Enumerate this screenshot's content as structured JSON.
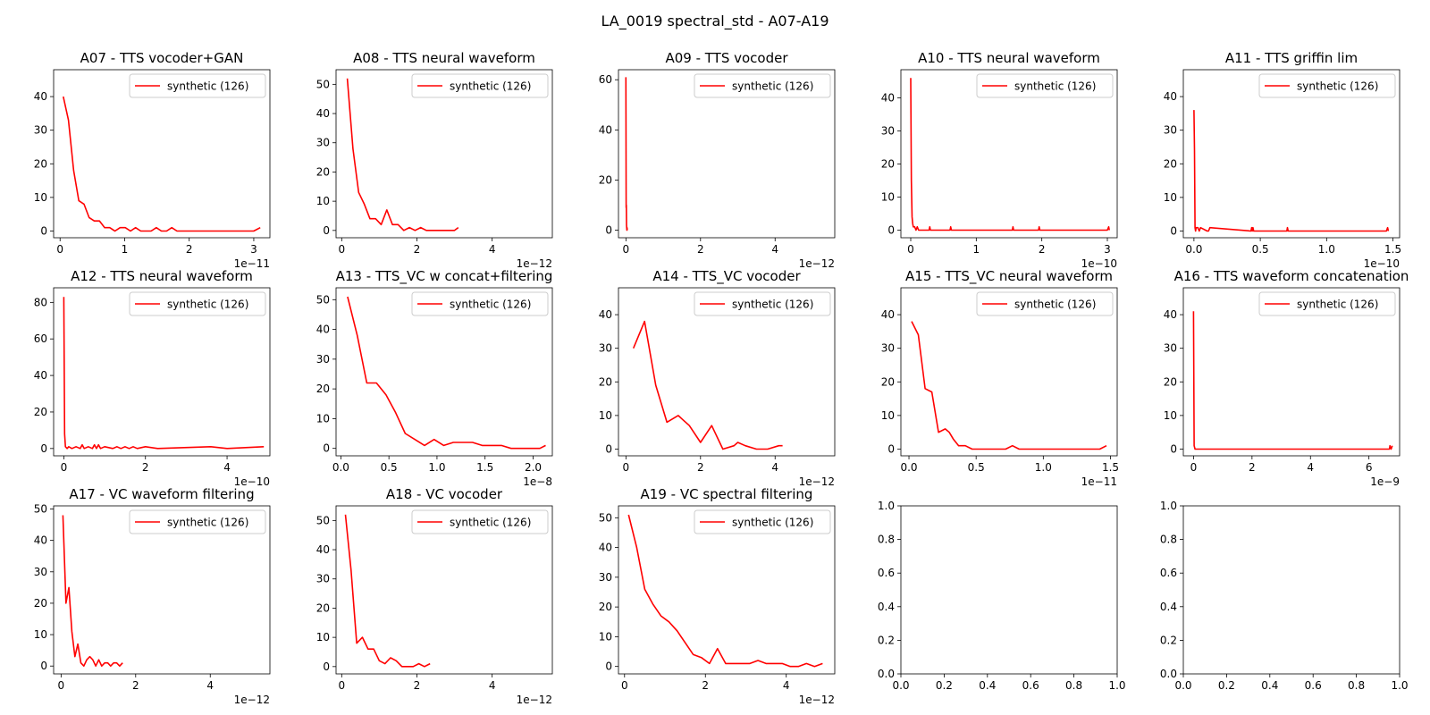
{
  "figure": {
    "title": "LA_0019 spectral_std - A07-A19"
  },
  "series_color": "#ff0000",
  "chart_data": [
    {
      "type": "line",
      "title": "A07 - TTS vocoder+GAN",
      "legend": "synthetic (126)",
      "legend_position": "upper right",
      "x_multiplier": "1e−11",
      "xticks": [
        0,
        1,
        2,
        3
      ],
      "yticks": [
        0,
        10,
        20,
        30,
        40
      ],
      "xlim": [
        -0.1,
        3.25
      ],
      "ylim": [
        -2,
        48
      ],
      "x": [
        0.05,
        0.13,
        0.21,
        0.29,
        0.37,
        0.45,
        0.53,
        0.61,
        0.69,
        0.77,
        0.85,
        0.93,
        1.01,
        1.09,
        1.17,
        1.25,
        1.33,
        1.41,
        1.49,
        1.57,
        1.65,
        1.73,
        1.81,
        1.9,
        2.0,
        2.1,
        2.2,
        2.3,
        2.4,
        2.5,
        2.6,
        2.7,
        2.8,
        2.9,
        3.0,
        3.1
      ],
      "y": [
        40,
        33,
        18,
        9,
        8,
        4,
        3,
        3,
        1,
        1,
        0,
        1,
        1,
        0,
        1,
        0,
        0,
        0,
        1,
        0,
        0,
        1,
        0,
        0,
        0,
        0,
        0,
        0,
        0,
        0,
        0,
        0,
        0,
        0,
        0,
        1
      ]
    },
    {
      "type": "line",
      "title": "A08 - TTS neural waveform",
      "legend": "synthetic (126)",
      "legend_position": "upper right",
      "x_multiplier": "1e−12",
      "xticks": [
        0,
        2,
        4
      ],
      "yticks": [
        0,
        10,
        20,
        30,
        40,
        50
      ],
      "xlim": [
        -0.15,
        5.6
      ],
      "ylim": [
        -2.5,
        55
      ],
      "x": [
        0.15,
        0.3,
        0.45,
        0.6,
        0.75,
        0.9,
        1.05,
        1.2,
        1.35,
        1.5,
        1.65,
        1.8,
        1.95,
        2.1,
        2.25,
        2.4,
        2.55,
        2.7,
        2.85,
        3.0,
        3.1
      ],
      "y": [
        52,
        28,
        13,
        9,
        4,
        4,
        2,
        7,
        2,
        2,
        0,
        1,
        0,
        1,
        0,
        0,
        0,
        0,
        0,
        0,
        1
      ]
    },
    {
      "type": "line",
      "title": "A09 - TTS vocoder",
      "legend": "synthetic (126)",
      "legend_position": "upper right",
      "x_multiplier": "1e−12",
      "xticks": [
        0,
        2,
        4
      ],
      "yticks": [
        0,
        20,
        40,
        60
      ],
      "xlim": [
        -0.2,
        5.6
      ],
      "ylim": [
        -3,
        64
      ],
      "x": [
        0.0,
        0.005,
        0.01,
        0.015,
        0.02,
        0.025,
        0.03,
        0.035
      ],
      "y": [
        61,
        9,
        10,
        2,
        1,
        0,
        1,
        0
      ]
    },
    {
      "type": "line",
      "title": "A10 - TTS neural waveform",
      "legend": "synthetic (126)",
      "legend_position": "upper right",
      "x_multiplier": "1e−10",
      "xticks": [
        0,
        1,
        2,
        3
      ],
      "yticks": [
        0,
        10,
        20,
        30,
        40
      ],
      "xlim": [
        -0.15,
        3.15
      ],
      "ylim": [
        -2.3,
        48.5
      ],
      "x": [
        0.0,
        0.01,
        0.02,
        0.03,
        0.04,
        0.06,
        0.08,
        0.1,
        0.12,
        0.2,
        0.28,
        0.29,
        0.3,
        0.6,
        0.61,
        0.62,
        1.55,
        1.56,
        1.57,
        1.95,
        1.96,
        1.97,
        3.0,
        3.02,
        3.03
      ],
      "y": [
        46,
        15,
        4,
        2,
        1,
        1,
        0,
        1,
        0,
        0,
        0,
        1,
        0,
        0,
        1,
        0,
        0,
        1,
        0,
        0,
        1,
        0,
        0,
        1,
        0
      ]
    },
    {
      "type": "line",
      "title": "A11 - TTS griffin lim",
      "legend": "synthetic (126)",
      "legend_position": "upper right",
      "x_multiplier": "1e−10",
      "xticks": [
        0.0,
        0.5,
        1.0,
        1.5
      ],
      "yticks": [
        0,
        10,
        20,
        30,
        40
      ],
      "xlim": [
        -0.08,
        1.55
      ],
      "ylim": [
        -2,
        48
      ],
      "x": [
        0.0,
        0.004,
        0.008,
        0.012,
        0.016,
        0.03,
        0.04,
        0.05,
        0.1,
        0.11,
        0.12,
        0.43,
        0.435,
        0.44,
        0.445,
        0.45,
        0.7,
        0.705,
        0.71,
        1.45,
        1.46,
        1.465
      ],
      "y": [
        36,
        24,
        1,
        0,
        1,
        1,
        0,
        1,
        0,
        0,
        1,
        0,
        1,
        0,
        1,
        0,
        0,
        1,
        0,
        0,
        1,
        0
      ]
    },
    {
      "type": "line",
      "title": "A12 - TTS neural waveform",
      "legend": "synthetic (126)",
      "legend_position": "upper right",
      "x_multiplier": "1e−10",
      "xticks": [
        0,
        2,
        4
      ],
      "yticks": [
        0,
        20,
        40,
        60,
        80
      ],
      "xlim": [
        -0.25,
        5.05
      ],
      "ylim": [
        -4,
        88
      ],
      "x": [
        0.0,
        0.02,
        0.04,
        0.08,
        0.12,
        0.2,
        0.3,
        0.4,
        0.45,
        0.5,
        0.6,
        0.7,
        0.75,
        0.8,
        0.85,
        0.9,
        1.0,
        1.2,
        1.3,
        1.4,
        1.5,
        1.6,
        1.7,
        1.8,
        2.0,
        2.3,
        3.6,
        4.0,
        4.9
      ],
      "y": [
        83,
        8,
        1,
        0,
        1,
        0,
        1,
        0,
        2,
        0,
        1,
        0,
        2,
        0,
        2,
        0,
        1,
        0,
        1,
        0,
        1,
        0,
        1,
        0,
        1,
        0,
        1,
        0,
        1
      ]
    },
    {
      "type": "line",
      "title": "A13 - TTS_VC w concat+filtering",
      "legend": "synthetic (126)",
      "legend_position": "upper right",
      "x_multiplier": "1e−8",
      "xticks": [
        0.0,
        0.5,
        1.0,
        1.5,
        2.0
      ],
      "yticks": [
        0,
        10,
        20,
        30,
        40,
        50
      ],
      "xlim": [
        -0.05,
        2.2
      ],
      "ylim": [
        -2.5,
        54
      ],
      "x": [
        0.07,
        0.17,
        0.27,
        0.37,
        0.47,
        0.57,
        0.67,
        0.77,
        0.87,
        0.97,
        1.07,
        1.17,
        1.27,
        1.37,
        1.47,
        1.57,
        1.67,
        1.77,
        1.87,
        1.97,
        2.07,
        2.13
      ],
      "y": [
        51,
        38,
        22,
        22,
        18,
        12,
        5,
        3,
        1,
        3,
        1,
        2,
        2,
        2,
        1,
        1,
        1,
        0,
        0,
        0,
        0,
        1
      ]
    },
    {
      "type": "line",
      "title": "A14 - TTS_VC vocoder",
      "legend": "synthetic (126)",
      "legend_position": "upper right",
      "x_multiplier": "1e−12",
      "xticks": [
        0,
        2,
        4
      ],
      "yticks": [
        0,
        10,
        20,
        30,
        40
      ],
      "xlim": [
        -0.2,
        5.6
      ],
      "ylim": [
        -2,
        48
      ],
      "x": [
        0.2,
        0.5,
        0.8,
        1.1,
        1.4,
        1.7,
        2.0,
        2.3,
        2.6,
        2.9,
        3.0,
        3.2,
        3.5,
        3.8,
        4.1,
        4.2
      ],
      "y": [
        30,
        38,
        19,
        8,
        10,
        7,
        2,
        7,
        0,
        1,
        2,
        1,
        0,
        0,
        1,
        1
      ]
    },
    {
      "type": "line",
      "title": "A15 - TTS_VC neural waveform",
      "legend": "synthetic (126)",
      "legend_position": "upper right",
      "x_multiplier": "1e−11",
      "xticks": [
        0.0,
        0.5,
        1.0,
        1.5
      ],
      "yticks": [
        0,
        10,
        20,
        30,
        40
      ],
      "xlim": [
        -0.06,
        1.55
      ],
      "ylim": [
        -2,
        48
      ],
      "x": [
        0.02,
        0.07,
        0.12,
        0.17,
        0.22,
        0.27,
        0.3,
        0.33,
        0.37,
        0.42,
        0.47,
        0.52,
        0.57,
        0.62,
        0.67,
        0.72,
        0.77,
        0.82,
        0.87,
        0.92,
        0.97,
        1.07,
        1.17,
        1.27,
        1.37,
        1.42,
        1.47
      ],
      "y": [
        38,
        34,
        18,
        17,
        5,
        6,
        5,
        3,
        1,
        1,
        0,
        0,
        0,
        0,
        0,
        0,
        1,
        0,
        0,
        0,
        0,
        0,
        0,
        0,
        0,
        0,
        1
      ]
    },
    {
      "type": "line",
      "title": "A16 - TTS waveform concatenation",
      "legend": "synthetic (126)",
      "legend_position": "upper right",
      "x_multiplier": "1e−9",
      "xticks": [
        0,
        2,
        4,
        6
      ],
      "yticks": [
        0,
        10,
        20,
        30,
        40
      ],
      "xlim": [
        -0.35,
        7.05
      ],
      "ylim": [
        -2,
        48
      ],
      "x": [
        0.0,
        0.02,
        0.05,
        6.7,
        6.72,
        6.76,
        6.8
      ],
      "y": [
        41,
        1,
        0,
        0,
        1,
        0,
        1
      ]
    },
    {
      "type": "line",
      "title": "A17 - VC waveform filtering",
      "legend": "synthetic (126)",
      "legend_position": "upper right",
      "x_multiplier": "1e−12",
      "xticks": [
        0,
        2,
        4
      ],
      "yticks": [
        0,
        10,
        20,
        30,
        40,
        50
      ],
      "xlim": [
        -0.2,
        5.6
      ],
      "ylim": [
        -2.5,
        51
      ],
      "x": [
        0.05,
        0.13,
        0.21,
        0.29,
        0.37,
        0.45,
        0.53,
        0.61,
        0.69,
        0.77,
        0.85,
        0.93,
        1.01,
        1.09,
        1.17,
        1.25,
        1.33,
        1.41,
        1.49,
        1.57,
        1.65
      ],
      "y": [
        48,
        20,
        25,
        11,
        3,
        7,
        1,
        0,
        2,
        3,
        2,
        0,
        2,
        0,
        1,
        1,
        0,
        1,
        1,
        0,
        1
      ]
    },
    {
      "type": "line",
      "title": "A18 - VC vocoder",
      "legend": "synthetic (126)",
      "legend_position": "upper right",
      "x_multiplier": "1e−12",
      "xticks": [
        0,
        2,
        4
      ],
      "yticks": [
        0,
        10,
        20,
        30,
        40,
        50
      ],
      "xlim": [
        -0.15,
        5.6
      ],
      "ylim": [
        -2.5,
        55
      ],
      "x": [
        0.1,
        0.25,
        0.4,
        0.55,
        0.7,
        0.85,
        1.0,
        1.15,
        1.3,
        1.45,
        1.6,
        1.75,
        1.9,
        2.05,
        2.2,
        2.35
      ],
      "y": [
        52,
        33,
        8,
        10,
        6,
        6,
        2,
        1,
        3,
        2,
        0,
        0,
        0,
        1,
        0,
        1
      ]
    },
    {
      "type": "line",
      "title": "A19 - VC spectral filtering",
      "legend": "synthetic (126)",
      "legend_position": "upper right",
      "x_multiplier": "1e−12",
      "xticks": [
        0,
        2,
        4
      ],
      "yticks": [
        0,
        10,
        20,
        30,
        40,
        50
      ],
      "xlim": [
        -0.15,
        5.2
      ],
      "ylim": [
        -2.5,
        54
      ],
      "x": [
        0.1,
        0.3,
        0.5,
        0.7,
        0.9,
        1.1,
        1.3,
        1.5,
        1.7,
        1.9,
        2.1,
        2.3,
        2.5,
        2.7,
        2.9,
        3.1,
        3.3,
        3.5,
        3.7,
        3.9,
        4.1,
        4.3,
        4.5,
        4.7,
        4.9
      ],
      "y": [
        51,
        40,
        26,
        21,
        17,
        15,
        12,
        8,
        4,
        3,
        1,
        6,
        1,
        1,
        1,
        1,
        2,
        1,
        1,
        1,
        0,
        0,
        1,
        0,
        1
      ]
    },
    {
      "type": "line",
      "title": "",
      "legend": "",
      "x_multiplier": "",
      "xticks": [
        0.0,
        0.2,
        0.4,
        0.6,
        0.8,
        1.0
      ],
      "yticks": [
        0.0,
        0.2,
        0.4,
        0.6,
        0.8,
        1.0
      ],
      "xlim": [
        0,
        1
      ],
      "ylim": [
        0,
        1
      ],
      "x": [],
      "y": []
    },
    {
      "type": "line",
      "title": "",
      "legend": "",
      "x_multiplier": "",
      "xticks": [
        0.0,
        0.2,
        0.4,
        0.6,
        0.8,
        1.0
      ],
      "yticks": [
        0.0,
        0.2,
        0.4,
        0.6,
        0.8,
        1.0
      ],
      "xlim": [
        0,
        1
      ],
      "ylim": [
        0,
        1
      ],
      "x": [],
      "y": []
    }
  ]
}
